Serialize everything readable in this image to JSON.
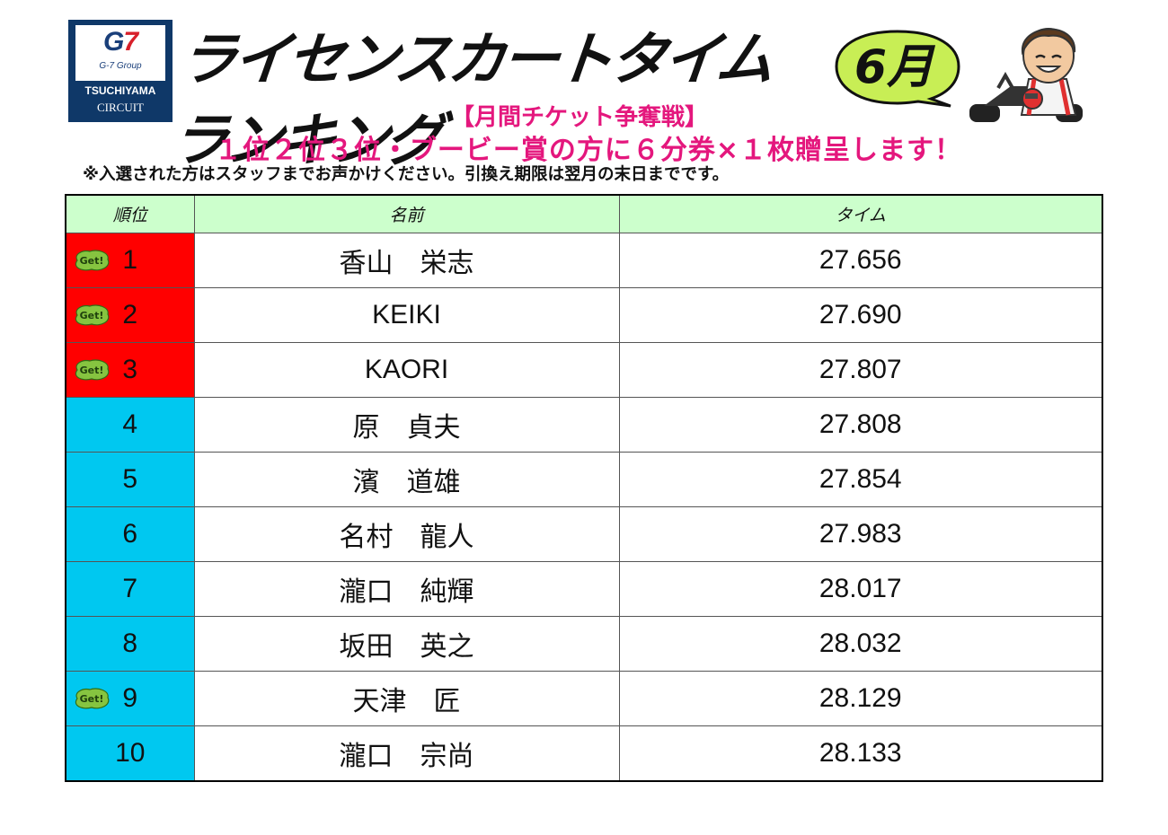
{
  "logo": {
    "g7": "G",
    "seven": "7",
    "group": "G-7 Group",
    "name": "TSUCHIYAMA",
    "circuit": "CIRCUIT"
  },
  "title": "ライセンスカートタイムランキング",
  "month": "6月",
  "campaign": "【月間チケット争奪戦】",
  "prize": "１位２位３位・ブービー賞の方に６分券×１枚贈呈します！",
  "notice": "※入選された方はスタッフまでお声かけください。引換え期限は翌月の末日までです。",
  "colors": {
    "top3": "#ff0000",
    "others": "#00c8f0",
    "header": "#ccffcc",
    "accent": "#e4177d"
  },
  "table": {
    "headers": [
      "順位",
      "名前",
      "タイム"
    ],
    "badge_label": "Get!",
    "rows": [
      {
        "rank": "1",
        "name": "香山　栄志",
        "time": "27.656",
        "badge": true
      },
      {
        "rank": "2",
        "name": "KEIKI",
        "time": "27.690",
        "badge": true
      },
      {
        "rank": "3",
        "name": "KAORI",
        "time": "27.807",
        "badge": true
      },
      {
        "rank": "4",
        "name": "原　貞夫",
        "time": "27.808",
        "badge": false
      },
      {
        "rank": "5",
        "name": "濱　道雄",
        "time": "27.854",
        "badge": false
      },
      {
        "rank": "6",
        "name": "名村　龍人",
        "time": "27.983",
        "badge": false
      },
      {
        "rank": "7",
        "name": "瀧口　純輝",
        "time": "28.017",
        "badge": false
      },
      {
        "rank": "8",
        "name": "坂田　英之",
        "time": "28.032",
        "badge": false
      },
      {
        "rank": "9",
        "name": "天津　匠",
        "time": "28.129",
        "badge": true
      },
      {
        "rank": "10",
        "name": "瀧口　宗尚",
        "time": "28.133",
        "badge": false
      }
    ]
  }
}
